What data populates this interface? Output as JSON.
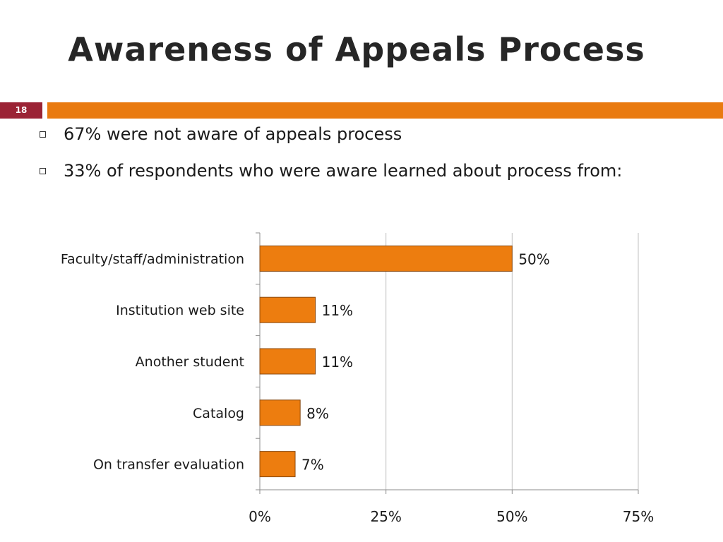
{
  "slide": {
    "title": "Awareness of Appeals Process",
    "number": "18"
  },
  "bullets": [
    {
      "text": "67% were not aware of appeals process"
    },
    {
      "text": "33% of respondents who were aware learned about process from:"
    }
  ],
  "colors": {
    "accent_orange": "#e97a10",
    "number_box": "#9b2335",
    "bar_fill": "#ed7d0f",
    "bar_stroke": "#8a4a10"
  },
  "chart_data": {
    "type": "bar",
    "orientation": "horizontal",
    "categories": [
      "Faculty/staff/administration",
      "Institution web site",
      "Another student",
      "Catalog",
      "On transfer evaluation"
    ],
    "values": [
      50,
      11,
      11,
      8,
      7
    ],
    "data_labels": [
      "50%",
      "11%",
      "11%",
      "8%",
      "7%"
    ],
    "xlim": [
      0,
      75
    ],
    "xticks": [
      0,
      25,
      50,
      75
    ],
    "xtick_labels": [
      "0%",
      "25%",
      "50%",
      "75%"
    ],
    "grid": "vertical",
    "legend": "none",
    "title": "",
    "xlabel": "",
    "ylabel": ""
  }
}
